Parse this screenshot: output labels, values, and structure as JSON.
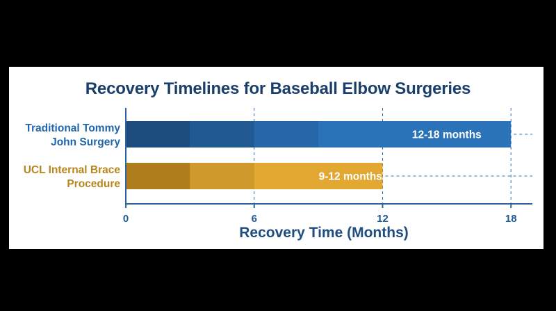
{
  "chart_data": {
    "type": "bar",
    "orientation": "horizontal",
    "title": "Recovery Timelines for Baseball Elbow Surgeries",
    "xlabel": "Recovery Time (Months)",
    "xlim": [
      0,
      19
    ],
    "xticks": [
      0,
      6,
      12,
      18
    ],
    "xtick_labels": [
      "0",
      "6",
      "12",
      "18"
    ],
    "grid": "vertical dashed at ticks",
    "categories": [
      "Traditional Tommy John Surgery",
      "UCL Internal Brace Procedure"
    ],
    "category_label_lines": [
      [
        "Traditional Tommy",
        "John Surgery"
      ],
      [
        "UCL Internal Brace",
        "Procedure"
      ]
    ],
    "ranges": [
      [
        12,
        18
      ],
      [
        9,
        12
      ]
    ],
    "values": [
      18,
      12
    ],
    "data_labels": [
      "12-18 months",
      "9-12 months"
    ],
    "colors": [
      "#2a73b8",
      "#e3a832"
    ],
    "label_colors": [
      "#2166a8",
      "#b8861e"
    ]
  }
}
